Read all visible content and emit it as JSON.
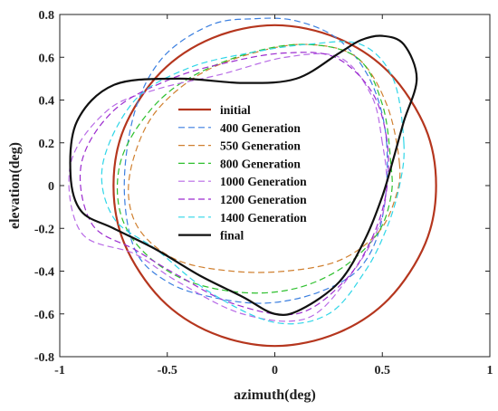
{
  "chart_data": {
    "type": "line",
    "xlabel": "azimuth(deg)",
    "ylabel": "elevation(deg)",
    "xlim": [
      -1,
      1
    ],
    "ylim": [
      -0.8,
      0.8
    ],
    "xticks": [
      "-1",
      "-0.5",
      "0",
      "0.5",
      "1"
    ],
    "yticks": [
      "-0.8",
      "-0.6",
      "-0.4",
      "-0.2",
      "0",
      "0.2",
      "0.4",
      "0.6",
      "0.8"
    ],
    "grid": false,
    "legend_position": "center",
    "series": [
      {
        "name": "initial",
        "color": "#b5361e",
        "dash": "solid",
        "x": [
          0.75,
          0.7,
          0.53,
          0.29,
          0.0,
          -0.29,
          -0.53,
          -0.7,
          -0.75,
          -0.7,
          -0.53,
          -0.29,
          0.0,
          0.29,
          0.53,
          0.7,
          0.75
        ],
        "y": [
          0.0,
          0.27,
          0.53,
          0.69,
          0.75,
          0.69,
          0.53,
          0.27,
          0.0,
          -0.27,
          -0.53,
          -0.69,
          -0.75,
          -0.69,
          -0.53,
          -0.27,
          0.0
        ]
      },
      {
        "name": "400 Generation",
        "color": "#3b7fe0",
        "dash": "dashed",
        "x": [
          0.52,
          0.45,
          0.3,
          0.1,
          -0.1,
          -0.3,
          -0.52,
          -0.65,
          -0.7,
          -0.65,
          -0.5,
          -0.3,
          -0.05,
          0.2,
          0.4,
          0.5,
          0.52
        ],
        "y": [
          0.2,
          0.48,
          0.68,
          0.77,
          0.78,
          0.75,
          0.6,
          0.35,
          0.0,
          -0.3,
          -0.45,
          -0.52,
          -0.55,
          -0.5,
          -0.38,
          -0.15,
          0.2
        ]
      },
      {
        "name": "550 Generation",
        "color": "#d08030",
        "dash": "dashed",
        "x": [
          0.58,
          0.52,
          0.38,
          0.15,
          -0.1,
          -0.35,
          -0.55,
          -0.65,
          -0.68,
          -0.62,
          -0.45,
          -0.2,
          0.05,
          0.3,
          0.48,
          0.56,
          0.58
        ],
        "y": [
          0.1,
          0.38,
          0.6,
          0.66,
          0.62,
          0.52,
          0.35,
          0.15,
          -0.05,
          -0.22,
          -0.35,
          -0.4,
          -0.4,
          -0.35,
          -0.22,
          -0.06,
          0.1
        ]
      },
      {
        "name": "800 Generation",
        "color": "#2ec02e",
        "dash": "dashed",
        "x": [
          0.54,
          0.5,
          0.38,
          0.12,
          -0.18,
          -0.45,
          -0.62,
          -0.72,
          -0.72,
          -0.62,
          -0.42,
          -0.15,
          0.1,
          0.32,
          0.48,
          0.54,
          0.54
        ],
        "y": [
          0.1,
          0.38,
          0.6,
          0.66,
          0.6,
          0.47,
          0.3,
          0.1,
          -0.12,
          -0.3,
          -0.44,
          -0.5,
          -0.48,
          -0.38,
          -0.22,
          -0.05,
          0.1
        ]
      },
      {
        "name": "1000 Generation",
        "color": "#b86ae6",
        "dash": "dashed",
        "x": [
          0.5,
          0.45,
          0.3,
          0.05,
          -0.25,
          -0.55,
          -0.78,
          -0.95,
          -0.9,
          -0.65,
          -0.45,
          -0.15,
          0.15,
          0.35,
          0.48,
          0.52,
          0.5
        ],
        "y": [
          0.2,
          0.42,
          0.6,
          0.6,
          0.52,
          0.45,
          0.35,
          0.1,
          -0.22,
          -0.32,
          -0.45,
          -0.6,
          -0.62,
          -0.42,
          -0.2,
          0.0,
          0.2
        ]
      },
      {
        "name": "1200 Generation",
        "color": "#9c2bcf",
        "dash": "dashed",
        "x": [
          0.52,
          0.45,
          0.28,
          0.05,
          -0.2,
          -0.48,
          -0.75,
          -0.9,
          -0.85,
          -0.65,
          -0.45,
          -0.2,
          0.1,
          0.32,
          0.45,
          0.52,
          0.52
        ],
        "y": [
          0.22,
          0.44,
          0.6,
          0.62,
          0.58,
          0.5,
          0.35,
          0.1,
          -0.18,
          -0.3,
          -0.42,
          -0.55,
          -0.6,
          -0.45,
          -0.25,
          -0.02,
          0.22
        ]
      },
      {
        "name": "1400 Generation",
        "color": "#2fd6e8",
        "dash": "dashed",
        "x": [
          0.6,
          0.55,
          0.4,
          0.15,
          -0.12,
          -0.4,
          -0.65,
          -0.8,
          -0.75,
          -0.55,
          -0.3,
          0.0,
          0.25,
          0.42,
          0.52,
          0.58,
          0.6
        ],
        "y": [
          0.2,
          0.5,
          0.66,
          0.66,
          0.62,
          0.55,
          0.4,
          0.1,
          -0.15,
          -0.3,
          -0.5,
          -0.64,
          -0.6,
          -0.4,
          -0.2,
          0.0,
          0.2
        ]
      },
      {
        "name": "final",
        "color": "#111111",
        "dash": "solid",
        "x": [
          0.66,
          0.6,
          0.5,
          0.4,
          0.3,
          0.1,
          -0.15,
          -0.45,
          -0.75,
          -0.92,
          -0.95,
          -0.9,
          -0.75,
          -0.55,
          -0.35,
          -0.15,
          0.0,
          0.12,
          0.3,
          0.42,
          0.5,
          0.55,
          0.6,
          0.66
        ],
        "y": [
          0.5,
          0.66,
          0.7,
          0.68,
          0.62,
          0.5,
          0.48,
          0.5,
          0.47,
          0.3,
          0.05,
          -0.12,
          -0.2,
          -0.3,
          -0.42,
          -0.52,
          -0.6,
          -0.58,
          -0.45,
          -0.25,
          -0.05,
          0.12,
          0.3,
          0.5
        ]
      }
    ]
  }
}
